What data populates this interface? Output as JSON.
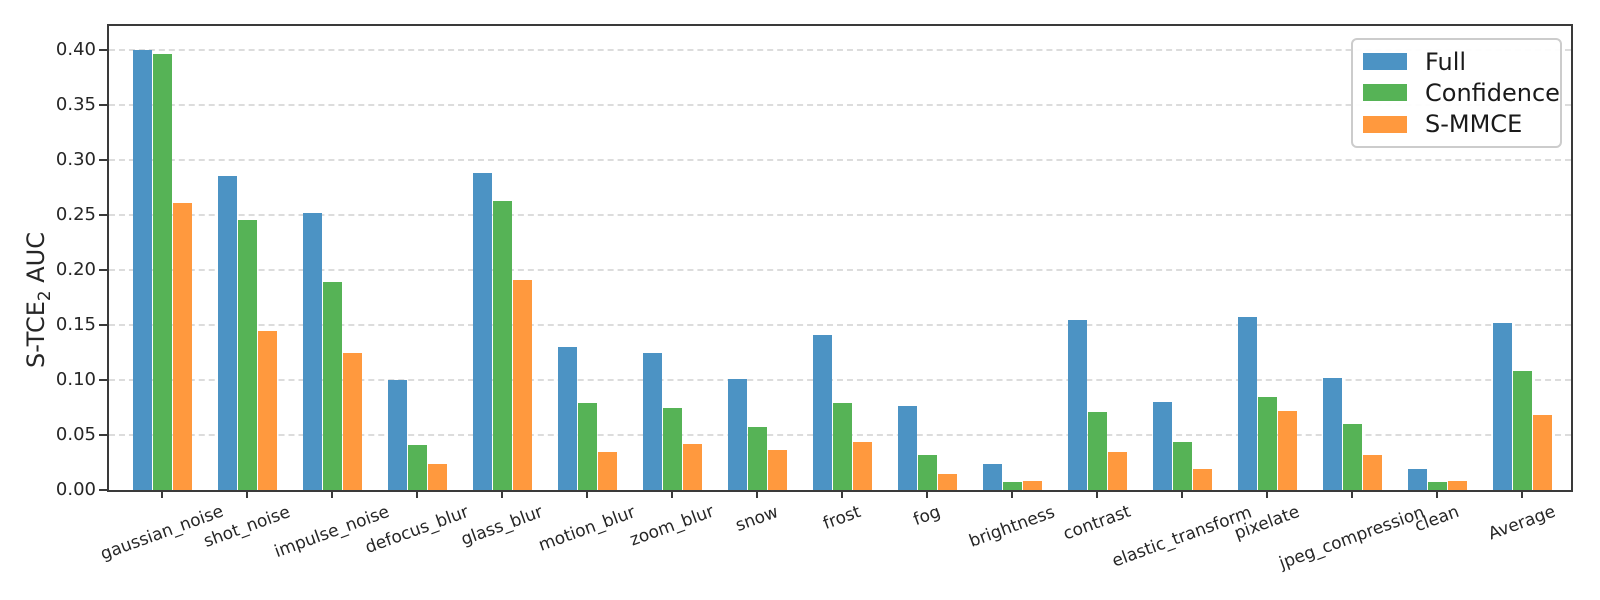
{
  "chart_data": {
    "type": "bar",
    "title": "",
    "ylabel_prefix": "S-TCE",
    "ylabel_sub": "2",
    "ylabel_suffix": " AUC",
    "xlabel": "",
    "categories": [
      "gaussian_noise",
      "shot_noise",
      "impulse_noise",
      "defocus_blur",
      "glass_blur",
      "motion_blur",
      "zoom_blur",
      "snow",
      "frost",
      "fog",
      "brightness",
      "contrast",
      "elastic_transform",
      "pixelate",
      "jpeg_compression",
      "clean",
      "Average"
    ],
    "series": [
      {
        "name": "Full",
        "color": "#4C93C4",
        "values": [
          0.4,
          0.286,
          0.252,
          0.1,
          0.288,
          0.13,
          0.125,
          0.101,
          0.141,
          0.076,
          0.024,
          0.155,
          0.08,
          0.157,
          0.102,
          0.019,
          0.152
        ]
      },
      {
        "name": "Confidence",
        "color": "#56B356",
        "values": [
          0.397,
          0.246,
          0.189,
          0.041,
          0.263,
          0.079,
          0.075,
          0.057,
          0.079,
          0.032,
          0.007,
          0.071,
          0.044,
          0.085,
          0.06,
          0.007,
          0.108
        ]
      },
      {
        "name": "S-MMCE",
        "color": "#FF993E",
        "values": [
          0.261,
          0.145,
          0.125,
          0.024,
          0.191,
          0.035,
          0.042,
          0.036,
          0.044,
          0.015,
          0.008,
          0.035,
          0.019,
          0.072,
          0.032,
          0.008,
          0.068
        ]
      }
    ],
    "yticks": [
      "0.00",
      "0.05",
      "0.10",
      "0.15",
      "0.20",
      "0.25",
      "0.30",
      "0.35",
      "0.40"
    ],
    "ylim": [
      0,
      0.422
    ],
    "legend": {
      "position": "upper right"
    },
    "grid": {
      "axis": "y",
      "style": "dashed",
      "color": "#dcdcdc"
    }
  }
}
